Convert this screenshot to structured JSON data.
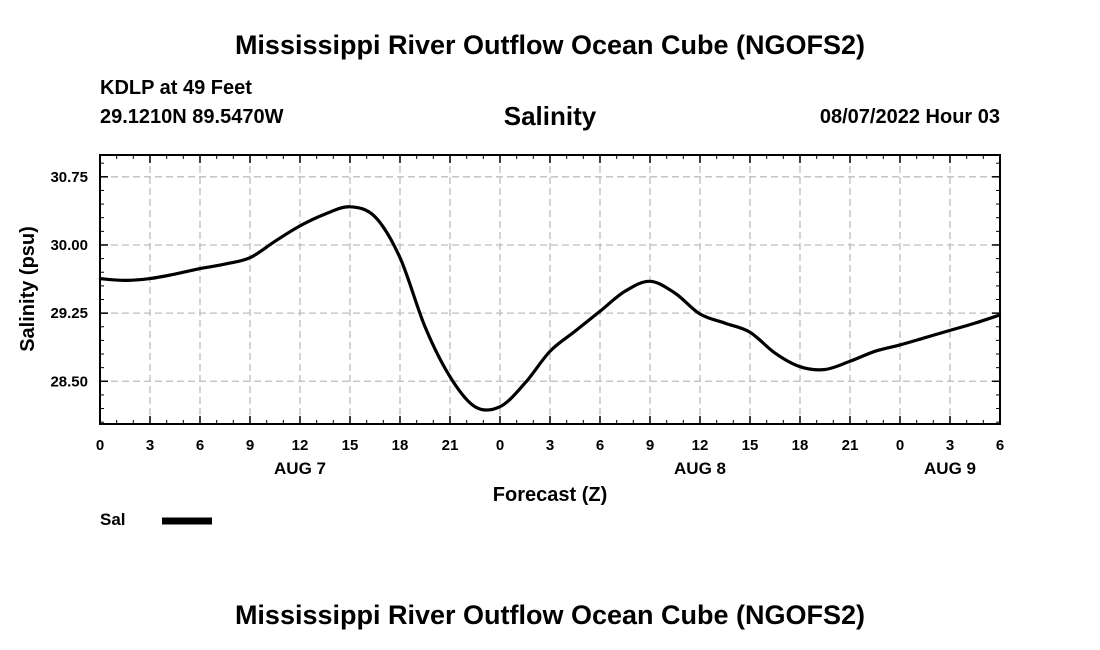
{
  "header": {
    "title": "Mississippi River Outflow Ocean Cube (NGOFS2)",
    "station": "KDLP at 49 Feet",
    "coordinates": "29.1210N  89.5470W",
    "variable": "Salinity",
    "timestamp": "08/07/2022 Hour 03"
  },
  "footer": {
    "title": "Mississippi River Outflow Ocean Cube (NGOFS2)"
  },
  "chart_data": {
    "type": "line",
    "title": "Salinity",
    "xlabel": "Forecast (Z)",
    "ylabel": "Salinity (psu)",
    "x_unit": "hours since AUG 7 00Z",
    "xlim": [
      0,
      54
    ],
    "ylim": [
      28.03,
      30.99
    ],
    "grid": true,
    "y_ticks": [
      28.5,
      29.25,
      30.0,
      30.75
    ],
    "y_tick_labels": [
      "28.50",
      "29.25",
      "30.00",
      "30.75"
    ],
    "x_ticks": [
      0,
      3,
      6,
      9,
      12,
      15,
      18,
      21,
      24,
      27,
      30,
      33,
      36,
      39,
      42,
      45,
      48,
      51,
      54
    ],
    "x_tick_labels": [
      "0",
      "3",
      "6",
      "9",
      "12",
      "15",
      "18",
      "21",
      "0",
      "3",
      "6",
      "9",
      "12",
      "15",
      "18",
      "21",
      "0",
      "3",
      "6"
    ],
    "day_labels": [
      {
        "x": 12,
        "label": "AUG 7"
      },
      {
        "x": 36,
        "label": "AUG 8"
      },
      {
        "x": 51,
        "label": "AUG 9"
      }
    ],
    "legend": {
      "position": "bottom-left",
      "entries": [
        {
          "name": "Sal",
          "color": "#000000"
        }
      ]
    },
    "series": [
      {
        "name": "Sal",
        "color": "#000000",
        "x": [
          0,
          1.5,
          3,
          4.5,
          6,
          7.5,
          9,
          10.5,
          12,
          13.5,
          15,
          16.5,
          18,
          19.5,
          21,
          22.5,
          24,
          25.5,
          27,
          28.5,
          30,
          31.5,
          33,
          34.5,
          36,
          37.5,
          39,
          40.5,
          42,
          43.5,
          45,
          46.5,
          48,
          49.5,
          51,
          52.5,
          54
        ],
        "values": [
          29.63,
          29.61,
          29.63,
          29.68,
          29.74,
          29.79,
          29.86,
          30.04,
          30.21,
          30.34,
          30.42,
          30.31,
          29.86,
          29.1,
          28.55,
          28.22,
          28.22,
          28.48,
          28.83,
          29.05,
          29.27,
          29.49,
          29.6,
          29.47,
          29.24,
          29.14,
          29.04,
          28.81,
          28.66,
          28.63,
          28.72,
          28.83,
          28.9,
          28.98,
          29.06,
          29.14,
          29.23
        ]
      }
    ]
  }
}
